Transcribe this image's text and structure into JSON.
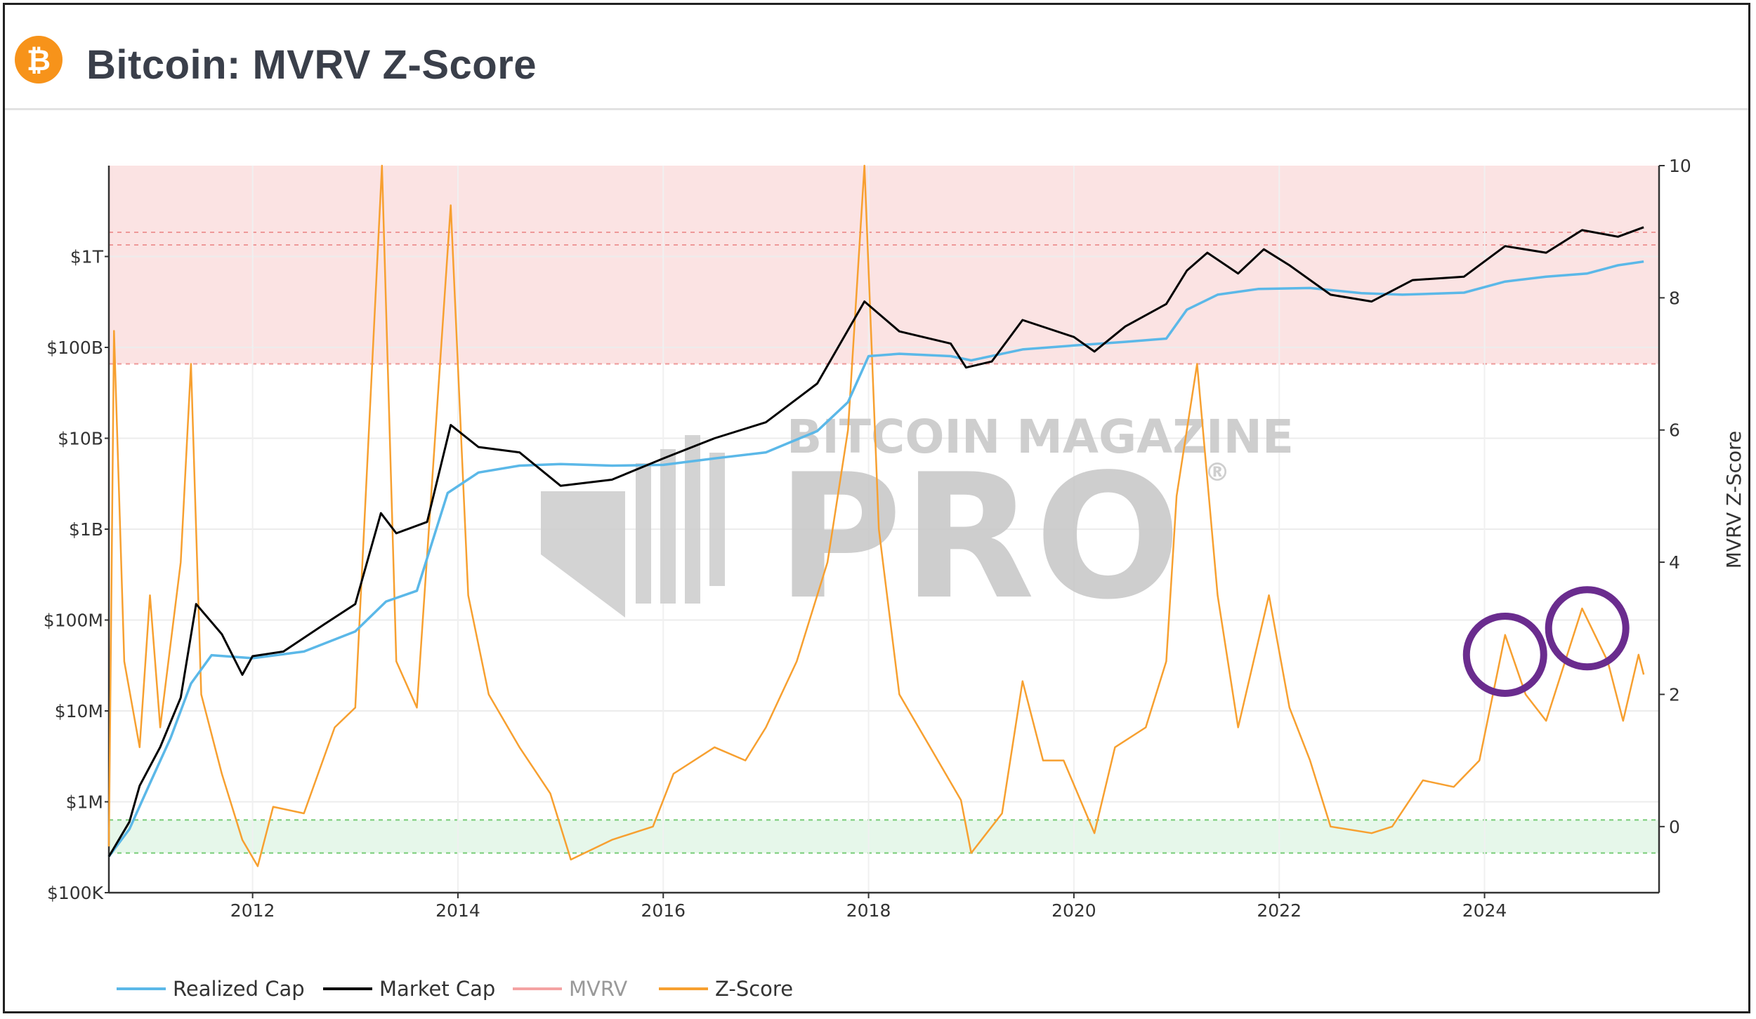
{
  "header": {
    "title": "Bitcoin: MVRV Z-Score",
    "logo_glyph": "₿",
    "logo_icon": "bitcoin-logo-icon"
  },
  "watermark": {
    "line1": "BITCOIN MAGAZINE",
    "line2": "PRO",
    "registered": "®"
  },
  "colors": {
    "realized_cap": "#5bb8e8",
    "market_cap": "#000000",
    "mvrv": "#f4a3a3",
    "z_score": "#f7a030",
    "red_band": "#fbe3e3",
    "green_band": "#e6f7ea",
    "highlight_circle": "#6a2c8e"
  },
  "chart_data": {
    "type": "line",
    "title": "Bitcoin: MVRV Z-Score",
    "x_range": [
      2010.6,
      2025.7
    ],
    "x_ticks": [
      "2012",
      "2014",
      "2016",
      "2018",
      "2020",
      "2022",
      "2024"
    ],
    "left_axis": {
      "scale": "log",
      "range": [
        100000,
        10000000000000
      ],
      "tick_labels": [
        "$100K",
        "$1M",
        "$10M",
        "$100M",
        "$1B",
        "$10B",
        "$100B",
        "$1T"
      ],
      "tick_values": [
        100000,
        1000000,
        10000000,
        100000000,
        1000000000,
        10000000000,
        100000000000,
        1000000000000
      ]
    },
    "right_axis": {
      "label": "MVRV Z-Score",
      "range": [
        -1,
        10
      ],
      "tick_labels": [
        "0",
        "2",
        "4",
        "6",
        "8",
        "10"
      ],
      "tick_values": [
        0,
        2,
        4,
        6,
        8,
        10
      ]
    },
    "zones": {
      "red_band": [
        7,
        10
      ],
      "green_band": [
        -0.4,
        0.1
      ]
    },
    "highlights": [
      {
        "x": 2024.2,
        "y": 2.6
      },
      {
        "x": 2025.0,
        "y": 3.0
      }
    ],
    "legend": {
      "placement": "bottom-left",
      "items": [
        "Realized Cap",
        "Market Cap",
        "MVRV",
        "Z-Score"
      ]
    },
    "series": [
      {
        "name": "Realized Cap",
        "axis": "left",
        "points": [
          [
            2010.6,
            250000
          ],
          [
            2010.8,
            500000
          ],
          [
            2011.0,
            1600000
          ],
          [
            2011.2,
            5000000
          ],
          [
            2011.4,
            20000000
          ],
          [
            2011.6,
            41000000
          ],
          [
            2012.0,
            38000000
          ],
          [
            2012.5,
            45000000
          ],
          [
            2013.0,
            75000000
          ],
          [
            2013.3,
            160000000
          ],
          [
            2013.6,
            210000000
          ],
          [
            2013.9,
            2500000000
          ],
          [
            2014.2,
            4200000000
          ],
          [
            2014.6,
            5000000000
          ],
          [
            2015.0,
            5200000000
          ],
          [
            2015.5,
            5000000000
          ],
          [
            2016.0,
            5100000000
          ],
          [
            2016.5,
            6000000000
          ],
          [
            2017.0,
            7000000000
          ],
          [
            2017.5,
            12000000000
          ],
          [
            2017.8,
            25000000000
          ],
          [
            2018.0,
            80000000000
          ],
          [
            2018.3,
            85000000000
          ],
          [
            2018.8,
            80000000000
          ],
          [
            2019.0,
            72000000000
          ],
          [
            2019.5,
            95000000000
          ],
          [
            2020.0,
            105000000000
          ],
          [
            2020.5,
            115000000000
          ],
          [
            2020.9,
            125000000000
          ],
          [
            2021.1,
            260000000000
          ],
          [
            2021.4,
            380000000000
          ],
          [
            2021.8,
            440000000000
          ],
          [
            2022.3,
            450000000000
          ],
          [
            2022.8,
            395000000000
          ],
          [
            2023.2,
            380000000000
          ],
          [
            2023.8,
            400000000000
          ],
          [
            2024.2,
            530000000000
          ],
          [
            2024.6,
            600000000000
          ],
          [
            2025.0,
            650000000000
          ],
          [
            2025.3,
            800000000000
          ],
          [
            2025.55,
            880000000000
          ]
        ]
      },
      {
        "name": "Market Cap",
        "axis": "left",
        "points": [
          [
            2010.6,
            250000
          ],
          [
            2010.8,
            600000
          ],
          [
            2010.9,
            1500000
          ],
          [
            2011.1,
            4000000
          ],
          [
            2011.3,
            14000000
          ],
          [
            2011.45,
            150000000
          ],
          [
            2011.7,
            70000000
          ],
          [
            2011.9,
            25000000
          ],
          [
            2012.0,
            40000000
          ],
          [
            2012.3,
            45000000
          ],
          [
            2012.7,
            90000000
          ],
          [
            2013.0,
            150000000
          ],
          [
            2013.25,
            1500000000
          ],
          [
            2013.4,
            900000000
          ],
          [
            2013.7,
            1200000000
          ],
          [
            2013.93,
            14000000000
          ],
          [
            2014.2,
            8000000000
          ],
          [
            2014.6,
            7000000000
          ],
          [
            2015.0,
            3000000000
          ],
          [
            2015.5,
            3500000000
          ],
          [
            2016.0,
            6000000000
          ],
          [
            2016.5,
            10000000000
          ],
          [
            2017.0,
            15000000000
          ],
          [
            2017.5,
            40000000000
          ],
          [
            2017.96,
            320000000000
          ],
          [
            2018.3,
            150000000000
          ],
          [
            2018.8,
            110000000000
          ],
          [
            2018.95,
            60000000000
          ],
          [
            2019.2,
            70000000000
          ],
          [
            2019.5,
            200000000000
          ],
          [
            2020.0,
            130000000000
          ],
          [
            2020.2,
            90000000000
          ],
          [
            2020.5,
            170000000000
          ],
          [
            2020.9,
            300000000000
          ],
          [
            2021.1,
            700000000000
          ],
          [
            2021.3,
            1100000000000
          ],
          [
            2021.6,
            650000000000
          ],
          [
            2021.85,
            1200000000000
          ],
          [
            2022.1,
            800000000000
          ],
          [
            2022.5,
            380000000000
          ],
          [
            2022.9,
            320000000000
          ],
          [
            2023.3,
            550000000000
          ],
          [
            2023.8,
            600000000000
          ],
          [
            2024.2,
            1300000000000
          ],
          [
            2024.6,
            1100000000000
          ],
          [
            2024.95,
            1950000000000
          ],
          [
            2025.3,
            1650000000000
          ],
          [
            2025.55,
            2100000000000
          ]
        ]
      },
      {
        "name": "Z-Score",
        "axis": "right",
        "points": [
          [
            2010.6,
            -0.3
          ],
          [
            2010.65,
            7.5
          ],
          [
            2010.75,
            2.5
          ],
          [
            2010.9,
            1.2
          ],
          [
            2011.0,
            3.5
          ],
          [
            2011.1,
            1.5
          ],
          [
            2011.3,
            4.0
          ],
          [
            2011.4,
            7.0
          ],
          [
            2011.5,
            2.0
          ],
          [
            2011.7,
            0.8
          ],
          [
            2011.9,
            -0.2
          ],
          [
            2012.05,
            -0.6
          ],
          [
            2012.2,
            0.3
          ],
          [
            2012.5,
            0.2
          ],
          [
            2012.8,
            1.5
          ],
          [
            2013.0,
            1.8
          ],
          [
            2013.26,
            10.0
          ],
          [
            2013.4,
            2.5
          ],
          [
            2013.6,
            1.8
          ],
          [
            2013.93,
            9.4
          ],
          [
            2014.1,
            3.5
          ],
          [
            2014.3,
            2.0
          ],
          [
            2014.6,
            1.2
          ],
          [
            2014.9,
            0.5
          ],
          [
            2015.1,
            -0.5
          ],
          [
            2015.5,
            -0.2
          ],
          [
            2015.9,
            0.0
          ],
          [
            2016.1,
            0.8
          ],
          [
            2016.5,
            1.2
          ],
          [
            2016.8,
            1.0
          ],
          [
            2017.0,
            1.5
          ],
          [
            2017.3,
            2.5
          ],
          [
            2017.6,
            4.0
          ],
          [
            2017.8,
            6.0
          ],
          [
            2017.96,
            10.0
          ],
          [
            2018.1,
            4.5
          ],
          [
            2018.3,
            2.0
          ],
          [
            2018.6,
            1.2
          ],
          [
            2018.9,
            0.4
          ],
          [
            2019.0,
            -0.4
          ],
          [
            2019.3,
            0.2
          ],
          [
            2019.5,
            2.2
          ],
          [
            2019.7,
            1.0
          ],
          [
            2019.9,
            1.0
          ],
          [
            2020.2,
            -0.1
          ],
          [
            2020.4,
            1.2
          ],
          [
            2020.7,
            1.5
          ],
          [
            2020.9,
            2.5
          ],
          [
            2021.0,
            5.0
          ],
          [
            2021.2,
            7.0
          ],
          [
            2021.4,
            3.5
          ],
          [
            2021.6,
            1.5
          ],
          [
            2021.9,
            3.5
          ],
          [
            2022.1,
            1.8
          ],
          [
            2022.3,
            1.0
          ],
          [
            2022.5,
            0.0
          ],
          [
            2022.9,
            -0.1
          ],
          [
            2023.1,
            0.0
          ],
          [
            2023.4,
            0.7
          ],
          [
            2023.7,
            0.6
          ],
          [
            2023.95,
            1.0
          ],
          [
            2024.2,
            2.9
          ],
          [
            2024.4,
            2.0
          ],
          [
            2024.6,
            1.6
          ],
          [
            2024.95,
            3.3
          ],
          [
            2025.2,
            2.5
          ],
          [
            2025.35,
            1.6
          ],
          [
            2025.5,
            2.6
          ],
          [
            2025.55,
            2.3
          ]
        ]
      }
    ]
  }
}
